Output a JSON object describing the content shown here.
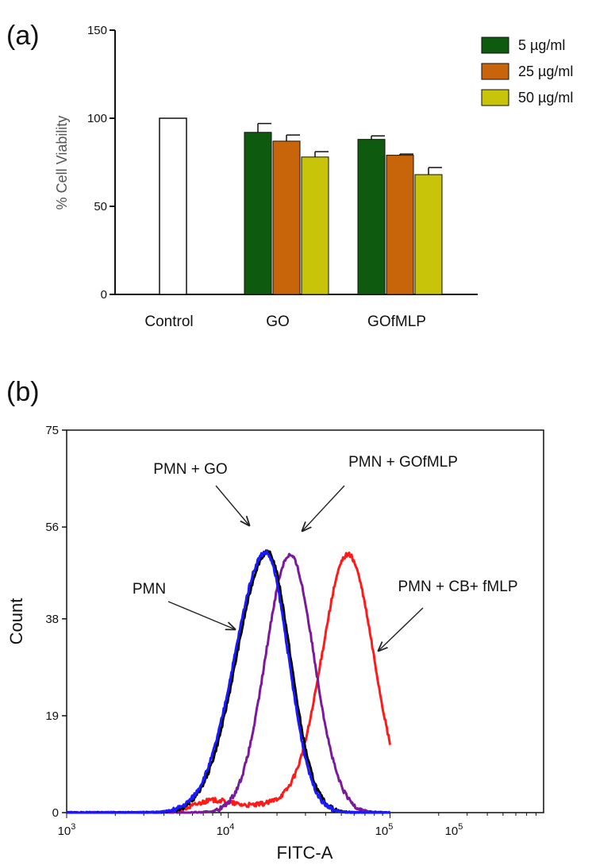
{
  "chart_data": [
    {
      "panel": "(a)",
      "type": "bar",
      "title": "",
      "xlabel": "",
      "ylabel": "% Cell Viability",
      "ylim": [
        0,
        150
      ],
      "yticks": [
        "0",
        "50",
        "100",
        "150"
      ],
      "grid": false,
      "legend_position": "top-right",
      "categories": [
        "Control",
        "GO",
        "GOfMLP"
      ],
      "control": {
        "value": 100,
        "color": "#ffffff"
      },
      "series": [
        {
          "name": "5 µg/ml",
          "color": "#0e5a0e",
          "values": [
            null,
            92,
            88
          ],
          "errors": [
            null,
            5,
            2
          ]
        },
        {
          "name": "25 µg/ml",
          "color": "#c8650a",
          "values": [
            null,
            87,
            79
          ],
          "errors": [
            null,
            3.5,
            0.7
          ]
        },
        {
          "name": "50 µg/ml",
          "color": "#c8c40a",
          "values": [
            null,
            78,
            68
          ],
          "errors": [
            null,
            3,
            4
          ]
        }
      ]
    },
    {
      "panel": "(b)",
      "type": "line",
      "title": "",
      "xlabel": "FITC-A",
      "ylabel": "Count",
      "xscale": "log",
      "ylim": [
        0,
        75
      ],
      "yticks": [
        "0",
        "19",
        "38",
        "56",
        "75"
      ],
      "xticks": [
        {
          "base": "10",
          "exp": "3"
        },
        {
          "base": "10",
          "exp": "4"
        },
        {
          "base": "10",
          "exp": "5"
        },
        {
          "base": "10",
          "exp": "5"
        }
      ],
      "grid": false,
      "series": [
        {
          "name": "PMN",
          "color": "#000000",
          "peak_x": 17500,
          "peak_count": 51,
          "width_left": 0.19,
          "width_right": 0.14
        },
        {
          "name": "PMN + GO",
          "color": "#1a1aff",
          "peak_x": 17000,
          "peak_count": 51,
          "width_left": 0.19,
          "width_right": 0.14
        },
        {
          "name": "PMN + GOfMLP",
          "color": "#7a1a9a",
          "peak_x": 24000,
          "peak_count": 50.5,
          "width_left": 0.15,
          "width_right": 0.15
        },
        {
          "name": "PMN + CB+ fMLP",
          "color": "#ff1a1a",
          "peak_x": 55000,
          "peak_count": 50.5,
          "width_left": 0.16,
          "width_right": 0.16
        }
      ],
      "annotations": [
        "PMN + GO",
        "PMN + GOfMLP",
        "PMN",
        "PMN + CB+ fMLP"
      ]
    }
  ]
}
